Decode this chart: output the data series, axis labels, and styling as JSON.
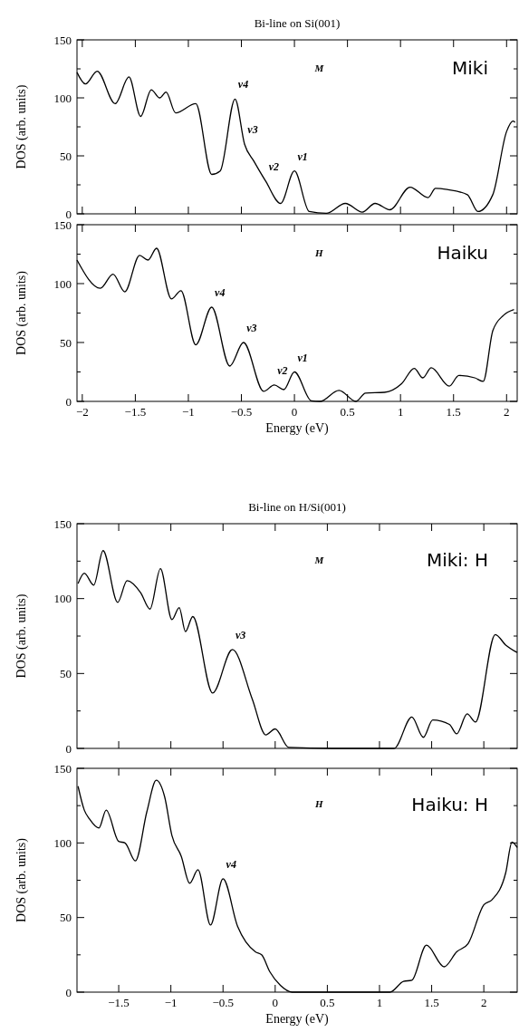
{
  "chart_data": [
    {
      "type": "line",
      "title": "Bi-line on Si(001)",
      "ylabel": "DOS (arb. units)",
      "xlim": [
        -2.05,
        2.1
      ],
      "ylim": [
        0,
        150
      ],
      "xticks": [
        -2,
        -1.5,
        -1,
        -0.5,
        0,
        0.5,
        1,
        1.5,
        2
      ],
      "yticks": [
        0,
        {
          "value": 25,
          "label": null
        },
        50,
        {
          "value": 75,
          "label": null
        },
        100,
        {
          "value": 125,
          "label": null
        },
        150
      ],
      "tick_labels": "y",
      "grid": false,
      "color": "#000000",
      "x": [
        -2.05,
        -1.97,
        -1.86,
        -1.69,
        -1.56,
        -1.45,
        -1.35,
        -1.27,
        -1.21,
        -1.12,
        -0.93,
        -0.78,
        -0.7,
        -0.56,
        -0.47,
        -0.38,
        -0.27,
        -0.13,
        0,
        0.14,
        0.3,
        0.48,
        0.64,
        0.76,
        0.9,
        1.09,
        1.26,
        1.33,
        1.44,
        1.63,
        1.73,
        1.87,
        2,
        2.06,
        2.08
      ],
      "values": [
        122,
        112,
        123,
        95,
        118,
        84,
        107,
        100,
        105,
        87,
        95,
        34,
        37,
        99,
        60,
        45,
        28,
        9,
        37,
        2,
        0.5,
        9,
        1.5,
        9,
        3.5,
        23,
        14,
        22,
        21,
        16.5,
        2,
        16.5,
        71,
        80,
        79
      ],
      "annotations": [
        "M",
        "Miki",
        {
          "text": "v4",
          "x": -0.56,
          "y": 99
        },
        {
          "text": "v3",
          "x": -0.47,
          "y": 60
        },
        {
          "text": "v2",
          "x": -0.27,
          "y": 28
        },
        {
          "text": "v1",
          "x": 0,
          "y": 37
        }
      ]
    },
    {
      "type": "line",
      "xlabel": "Energy (eV)",
      "ylabel": "DOS (arb. units)",
      "xlim": [
        -2.05,
        2.1
      ],
      "ylim": [
        0,
        150
      ],
      "xticks": [
        -2,
        -1.5,
        -1,
        -0.5,
        0,
        0.5,
        1,
        1.5,
        2
      ],
      "yticks": [
        0,
        {
          "value": 25,
          "label": null
        },
        50,
        {
          "value": 75,
          "label": null
        },
        100,
        {
          "value": 125,
          "label": null
        },
        150
      ],
      "grid": false,
      "color": "#000000",
      "x": [
        -2.05,
        -1.83,
        -1.71,
        -1.6,
        -1.46,
        -1.38,
        -1.3,
        -1.16,
        -1.07,
        -0.93,
        -0.78,
        -0.61,
        -0.48,
        -0.29,
        -0.19,
        -0.1,
        0,
        0.16,
        0.24,
        0.42,
        0.58,
        0.67,
        0.85,
        1.01,
        1.13,
        1.21,
        1.29,
        1.46,
        1.55,
        1.7,
        1.78,
        1.87,
        1.97,
        2.07
      ],
      "values": [
        120,
        96,
        108,
        93,
        124,
        120,
        130,
        87,
        94,
        48,
        80,
        30,
        50,
        8.5,
        14,
        10,
        25,
        0.5,
        0,
        9.4,
        0,
        7,
        7.7,
        15,
        28,
        20,
        28.5,
        13,
        22,
        20,
        17,
        60,
        73,
        78
      ],
      "annotations": [
        "H",
        "Haiku",
        {
          "text": "v4",
          "x": -0.78,
          "y": 80
        },
        {
          "text": "v3",
          "x": -0.48,
          "y": 50
        },
        {
          "text": "v2",
          "x": -0.19,
          "y": 14
        },
        {
          "text": "v1",
          "x": 0,
          "y": 25
        }
      ]
    },
    {
      "type": "line",
      "title": "Bi-line on H/Si(001)",
      "ylabel": "DOS (arb. units)",
      "xlim": [
        -1.9,
        2.32
      ],
      "ylim": [
        0,
        150
      ],
      "xticks": [
        -1.5,
        -1,
        -0.5,
        0,
        0.5,
        1,
        1.5,
        2
      ],
      "yticks": [
        0,
        {
          "value": 25,
          "label": null
        },
        50,
        {
          "value": 75,
          "label": null
        },
        100,
        {
          "value": 125,
          "label": null
        },
        150
      ],
      "tick_labels": "y",
      "grid": false,
      "color": "#000000",
      "x": [
        -1.89,
        -1.83,
        -1.74,
        -1.65,
        -1.51,
        -1.42,
        -1.29,
        -1.2,
        -1.1,
        -0.99,
        -0.92,
        -0.86,
        -0.79,
        -0.6,
        -0.41,
        -0.22,
        -0.09,
        0,
        0.13,
        0.54,
        1.14,
        1.31,
        1.42,
        1.51,
        1.67,
        1.74,
        1.84,
        1.92,
        2.11,
        2.21,
        2.32
      ],
      "values": [
        110,
        117,
        109,
        132,
        97.5,
        112,
        104,
        93,
        120,
        86,
        94,
        78,
        88,
        37,
        66,
        33,
        9,
        13,
        0.7,
        0,
        0,
        21,
        7.4,
        19,
        16,
        9.7,
        23,
        17.6,
        76,
        69,
        64
      ],
      "annotations": [
        "M",
        "Miki: H",
        {
          "text": "v3",
          "x": -0.41,
          "y": 66
        }
      ]
    },
    {
      "type": "line",
      "xlabel": "Energy (eV)",
      "ylabel": "DOS (arb. units)",
      "xlim": [
        -1.9,
        2.32
      ],
      "ylim": [
        0,
        150
      ],
      "xticks": [
        -1.5,
        -1,
        -0.5,
        0,
        0.5,
        1,
        1.5,
        2
      ],
      "yticks": [
        0,
        {
          "value": 25,
          "label": null
        },
        50,
        {
          "value": 75,
          "label": null
        },
        100,
        {
          "value": 125,
          "label": null
        },
        150
      ],
      "grid": false,
      "color": "#000000",
      "x": [
        -1.89,
        -1.83,
        -1.78,
        -1.69,
        -1.62,
        -1.5,
        -1.44,
        -1.34,
        -1.23,
        -1.14,
        -1.06,
        -0.99,
        -0.9,
        -0.82,
        -0.74,
        -0.62,
        -0.5,
        -0.36,
        -0.19,
        -0.13,
        -0.05,
        0.05,
        0.16,
        1.1,
        1.23,
        1.31,
        1.45,
        1.62,
        1.74,
        1.85,
        2,
        2.08,
        2.21,
        2.27,
        2.32
      ],
      "values": [
        138,
        122,
        116,
        110,
        122,
        101,
        100,
        88,
        121,
        142,
        131,
        105,
        91,
        73,
        82,
        45,
        76,
        44,
        27,
        25,
        13.5,
        4.5,
        0,
        0,
        7.2,
        8,
        31.5,
        17,
        27,
        32.6,
        58.5,
        62,
        80,
        100.5,
        97
      ],
      "annotations": [
        "H",
        "Haiku: H",
        {
          "text": "v4",
          "x": -0.5,
          "y": 76
        }
      ]
    }
  ]
}
